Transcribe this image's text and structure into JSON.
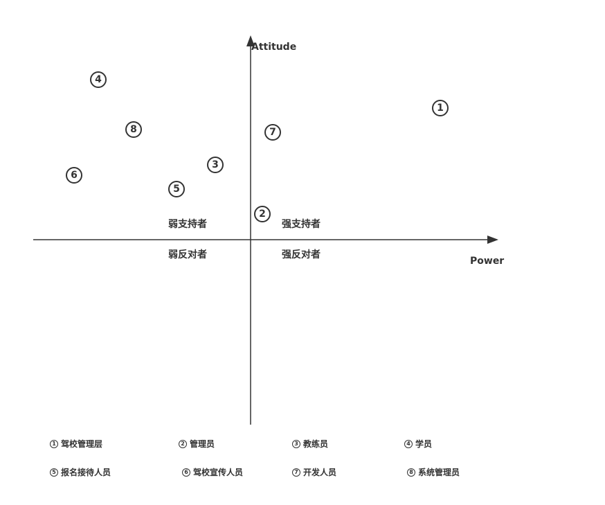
{
  "axes": {
    "y_title": "Attitude",
    "x_title": "Power"
  },
  "quadrants": {
    "upper_left": "弱支持者",
    "upper_right": "强支持者",
    "lower_left": "弱反对者",
    "lower_right": "强反对者"
  },
  "points": [
    {
      "id": "1",
      "label": "1"
    },
    {
      "id": "2",
      "label": "2"
    },
    {
      "id": "3",
      "label": "3"
    },
    {
      "id": "4",
      "label": "4"
    },
    {
      "id": "5",
      "label": "5"
    },
    {
      "id": "6",
      "label": "6"
    },
    {
      "id": "7",
      "label": "7"
    },
    {
      "id": "8",
      "label": "8"
    }
  ],
  "legend": [
    {
      "num": "1",
      "text": "驾校管理层"
    },
    {
      "num": "2",
      "text": "管理员"
    },
    {
      "num": "3",
      "text": "教练员"
    },
    {
      "num": "4",
      "text": "学员"
    },
    {
      "num": "5",
      "text": "报名接待人员"
    },
    {
      "num": "6",
      "text": "驾校宣传人员"
    },
    {
      "num": "7",
      "text": "开发人员"
    },
    {
      "num": "8",
      "text": "系统管理员"
    }
  ],
  "colors": {
    "ink": "#333333",
    "background": "#ffffff"
  }
}
